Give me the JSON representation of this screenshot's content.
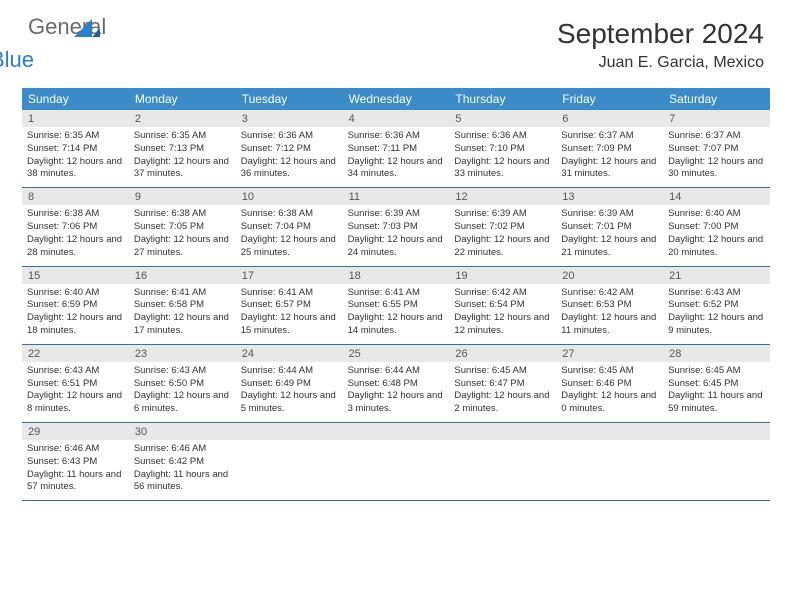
{
  "brand": {
    "part1": "General",
    "part2": "Blue"
  },
  "title": "September 2024",
  "location": "Juan E. Garcia, Mexico",
  "colors": {
    "header_bg": "#3b8bc9",
    "header_text": "#ffffff",
    "daynum_bg": "#e8e8e8",
    "border": "#3b6f95",
    "brand_gray": "#6b6b6b",
    "brand_blue": "#2a7fc9"
  },
  "day_names": [
    "Sunday",
    "Monday",
    "Tuesday",
    "Wednesday",
    "Thursday",
    "Friday",
    "Saturday"
  ],
  "weeks": [
    {
      "nums": [
        "1",
        "2",
        "3",
        "4",
        "5",
        "6",
        "7"
      ],
      "cells": [
        {
          "sunrise": "Sunrise: 6:35 AM",
          "sunset": "Sunset: 7:14 PM",
          "daylight": "Daylight: 12 hours and 38 minutes."
        },
        {
          "sunrise": "Sunrise: 6:35 AM",
          "sunset": "Sunset: 7:13 PM",
          "daylight": "Daylight: 12 hours and 37 minutes."
        },
        {
          "sunrise": "Sunrise: 6:36 AM",
          "sunset": "Sunset: 7:12 PM",
          "daylight": "Daylight: 12 hours and 36 minutes."
        },
        {
          "sunrise": "Sunrise: 6:36 AM",
          "sunset": "Sunset: 7:11 PM",
          "daylight": "Daylight: 12 hours and 34 minutes."
        },
        {
          "sunrise": "Sunrise: 6:36 AM",
          "sunset": "Sunset: 7:10 PM",
          "daylight": "Daylight: 12 hours and 33 minutes."
        },
        {
          "sunrise": "Sunrise: 6:37 AM",
          "sunset": "Sunset: 7:09 PM",
          "daylight": "Daylight: 12 hours and 31 minutes."
        },
        {
          "sunrise": "Sunrise: 6:37 AM",
          "sunset": "Sunset: 7:07 PM",
          "daylight": "Daylight: 12 hours and 30 minutes."
        }
      ]
    },
    {
      "nums": [
        "8",
        "9",
        "10",
        "11",
        "12",
        "13",
        "14"
      ],
      "cells": [
        {
          "sunrise": "Sunrise: 6:38 AM",
          "sunset": "Sunset: 7:06 PM",
          "daylight": "Daylight: 12 hours and 28 minutes."
        },
        {
          "sunrise": "Sunrise: 6:38 AM",
          "sunset": "Sunset: 7:05 PM",
          "daylight": "Daylight: 12 hours and 27 minutes."
        },
        {
          "sunrise": "Sunrise: 6:38 AM",
          "sunset": "Sunset: 7:04 PM",
          "daylight": "Daylight: 12 hours and 25 minutes."
        },
        {
          "sunrise": "Sunrise: 6:39 AM",
          "sunset": "Sunset: 7:03 PM",
          "daylight": "Daylight: 12 hours and 24 minutes."
        },
        {
          "sunrise": "Sunrise: 6:39 AM",
          "sunset": "Sunset: 7:02 PM",
          "daylight": "Daylight: 12 hours and 22 minutes."
        },
        {
          "sunrise": "Sunrise: 6:39 AM",
          "sunset": "Sunset: 7:01 PM",
          "daylight": "Daylight: 12 hours and 21 minutes."
        },
        {
          "sunrise": "Sunrise: 6:40 AM",
          "sunset": "Sunset: 7:00 PM",
          "daylight": "Daylight: 12 hours and 20 minutes."
        }
      ]
    },
    {
      "nums": [
        "15",
        "16",
        "17",
        "18",
        "19",
        "20",
        "21"
      ],
      "cells": [
        {
          "sunrise": "Sunrise: 6:40 AM",
          "sunset": "Sunset: 6:59 PM",
          "daylight": "Daylight: 12 hours and 18 minutes."
        },
        {
          "sunrise": "Sunrise: 6:41 AM",
          "sunset": "Sunset: 6:58 PM",
          "daylight": "Daylight: 12 hours and 17 minutes."
        },
        {
          "sunrise": "Sunrise: 6:41 AM",
          "sunset": "Sunset: 6:57 PM",
          "daylight": "Daylight: 12 hours and 15 minutes."
        },
        {
          "sunrise": "Sunrise: 6:41 AM",
          "sunset": "Sunset: 6:55 PM",
          "daylight": "Daylight: 12 hours and 14 minutes."
        },
        {
          "sunrise": "Sunrise: 6:42 AM",
          "sunset": "Sunset: 6:54 PM",
          "daylight": "Daylight: 12 hours and 12 minutes."
        },
        {
          "sunrise": "Sunrise: 6:42 AM",
          "sunset": "Sunset: 6:53 PM",
          "daylight": "Daylight: 12 hours and 11 minutes."
        },
        {
          "sunrise": "Sunrise: 6:43 AM",
          "sunset": "Sunset: 6:52 PM",
          "daylight": "Daylight: 12 hours and 9 minutes."
        }
      ]
    },
    {
      "nums": [
        "22",
        "23",
        "24",
        "25",
        "26",
        "27",
        "28"
      ],
      "cells": [
        {
          "sunrise": "Sunrise: 6:43 AM",
          "sunset": "Sunset: 6:51 PM",
          "daylight": "Daylight: 12 hours and 8 minutes."
        },
        {
          "sunrise": "Sunrise: 6:43 AM",
          "sunset": "Sunset: 6:50 PM",
          "daylight": "Daylight: 12 hours and 6 minutes."
        },
        {
          "sunrise": "Sunrise: 6:44 AM",
          "sunset": "Sunset: 6:49 PM",
          "daylight": "Daylight: 12 hours and 5 minutes."
        },
        {
          "sunrise": "Sunrise: 6:44 AM",
          "sunset": "Sunset: 6:48 PM",
          "daylight": "Daylight: 12 hours and 3 minutes."
        },
        {
          "sunrise": "Sunrise: 6:45 AM",
          "sunset": "Sunset: 6:47 PM",
          "daylight": "Daylight: 12 hours and 2 minutes."
        },
        {
          "sunrise": "Sunrise: 6:45 AM",
          "sunset": "Sunset: 6:46 PM",
          "daylight": "Daylight: 12 hours and 0 minutes."
        },
        {
          "sunrise": "Sunrise: 6:45 AM",
          "sunset": "Sunset: 6:45 PM",
          "daylight": "Daylight: 11 hours and 59 minutes."
        }
      ]
    },
    {
      "nums": [
        "29",
        "30",
        "",
        "",
        "",
        "",
        ""
      ],
      "cells": [
        {
          "sunrise": "Sunrise: 6:46 AM",
          "sunset": "Sunset: 6:43 PM",
          "daylight": "Daylight: 11 hours and 57 minutes."
        },
        {
          "sunrise": "Sunrise: 6:46 AM",
          "sunset": "Sunset: 6:42 PM",
          "daylight": "Daylight: 11 hours and 56 minutes."
        },
        {
          "sunrise": "",
          "sunset": "",
          "daylight": ""
        },
        {
          "sunrise": "",
          "sunset": "",
          "daylight": ""
        },
        {
          "sunrise": "",
          "sunset": "",
          "daylight": ""
        },
        {
          "sunrise": "",
          "sunset": "",
          "daylight": ""
        },
        {
          "sunrise": "",
          "sunset": "",
          "daylight": ""
        }
      ]
    }
  ]
}
